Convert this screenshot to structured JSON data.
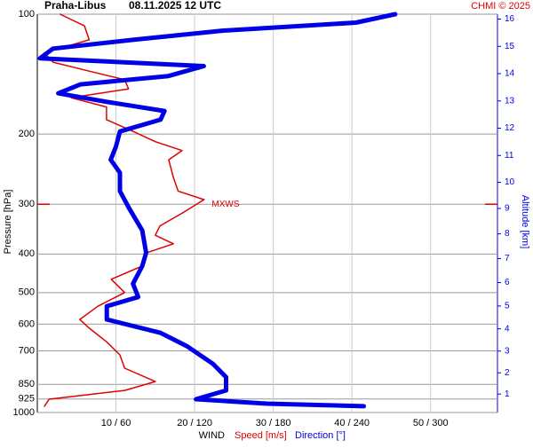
{
  "chart_data": {
    "type": "profile",
    "title": "Praha-Libus",
    "subtitle": "08.11.2025 12 UTC",
    "credit": "CHMI © 2025",
    "y_label": "Pressure [hPa]",
    "y2_label": "Altitude [km]",
    "x_label": "WIND",
    "ylim": [
      1000,
      100
    ],
    "log_y": true,
    "yticks": [
      100,
      200,
      300,
      400,
      500,
      600,
      700,
      850,
      925,
      1000
    ],
    "y2ticks": [
      1,
      2,
      3,
      4,
      5,
      6,
      7,
      8,
      9,
      10,
      11,
      12,
      13,
      14,
      15,
      16
    ],
    "xlim": [
      0,
      58.5
    ],
    "x2lim": [
      0,
      351
    ],
    "xticks": [
      {
        "value": 10,
        "label": "10 / 60"
      },
      {
        "value": 20,
        "label": "20 / 120"
      },
      {
        "value": 30,
        "label": "30 / 180"
      },
      {
        "value": 40,
        "label": "40 / 240"
      },
      {
        "value": 50,
        "label": "50 / 300"
      }
    ],
    "grid": true,
    "annotation": {
      "text": "MXWS",
      "pressure": 300,
      "color": "#e00000"
    },
    "series": [
      {
        "name": "Speed [m/s]",
        "color": "#e00000",
        "pressure": [
          100,
          107,
          116,
          125,
          132,
          139,
          146,
          154,
          162,
          171,
          184,
          197,
          209,
          220,
          232,
          257,
          278,
          292,
          316,
          340,
          359,
          377,
          397,
          429,
          463,
          500,
          541,
          584,
          614,
          664,
          717,
          774,
          836,
          880,
          926,
          964
        ],
        "values": [
          2.9,
          6.0,
          6.6,
          0.9,
          2.0,
          6.6,
          11.1,
          11.6,
          4.3,
          8.8,
          8.8,
          12.2,
          15.0,
          18.4,
          16.7,
          17.3,
          17.9,
          21.2,
          18.4,
          15.6,
          15.0,
          17.3,
          13.9,
          13.3,
          9.4,
          11.1,
          7.7,
          5.4,
          6.6,
          8.8,
          10.5,
          11.1,
          15.0,
          11.1,
          1.5,
          0.9
        ]
      },
      {
        "name": "Direction [°]",
        "color": "#0000e6",
        "axis": "x2",
        "pressure": [
          100,
          105,
          110,
          116,
          122,
          129,
          135,
          143,
          150,
          158,
          166,
          175,
          184,
          197,
          215,
          232,
          250,
          278,
          307,
          349,
          397,
          429,
          475,
          513,
          541,
          584,
          631,
          681,
          755,
          815,
          880,
          926,
          950,
          964
        ],
        "values": [
          273,
          243,
          141,
          73,
          12,
          2,
          127,
          100,
          33,
          16,
          53,
          97,
          94,
          63,
          60,
          56,
          63,
          63,
          70,
          80,
          83,
          80,
          73,
          77,
          53,
          53,
          94,
          114,
          134,
          144,
          144,
          121,
          175,
          249
        ]
      }
    ]
  }
}
